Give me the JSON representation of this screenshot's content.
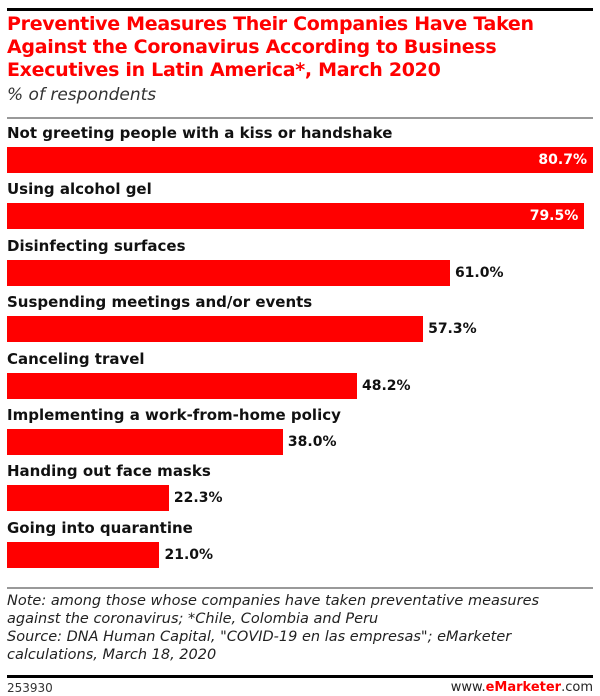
{
  "chart_data": {
    "type": "bar",
    "orientation": "horizontal",
    "title": "Preventive Measures Their Companies Have Taken Against the Coronavirus According to Business Executives in Latin America*, March 2020",
    "subtitle": "% of respondents",
    "categories": [
      "Not greeting people with a kiss or handshake",
      "Using alcohol gel",
      "Disinfecting surfaces",
      "Suspending meetings and/or events",
      "Canceling travel",
      "Implementing a work-from-home policy",
      "Handing out face masks",
      "Going into quarantine"
    ],
    "values": [
      80.7,
      79.5,
      61.0,
      57.3,
      48.2,
      38.0,
      22.3,
      21.0
    ],
    "labels": [
      "80.7%",
      "79.5%",
      "61.0%",
      "57.3%",
      "48.2%",
      "38.0%",
      "22.3%",
      "21.0%"
    ],
    "xlim": [
      0,
      80.7
    ],
    "grid": false,
    "bar_color": "#ff0000"
  },
  "note": "Note: among those whose companies have taken preventative measures against the coronavirus; *Chile, Colombia and Peru",
  "source": "Source: DNA Human Capital, \"COVID-19 en las empresas\"; eMarketer calculations, March 18, 2020",
  "footer": {
    "id": "253930",
    "brand_prefix": "www.",
    "brand_main": "eMarketer",
    "brand_suffix": ".com"
  }
}
